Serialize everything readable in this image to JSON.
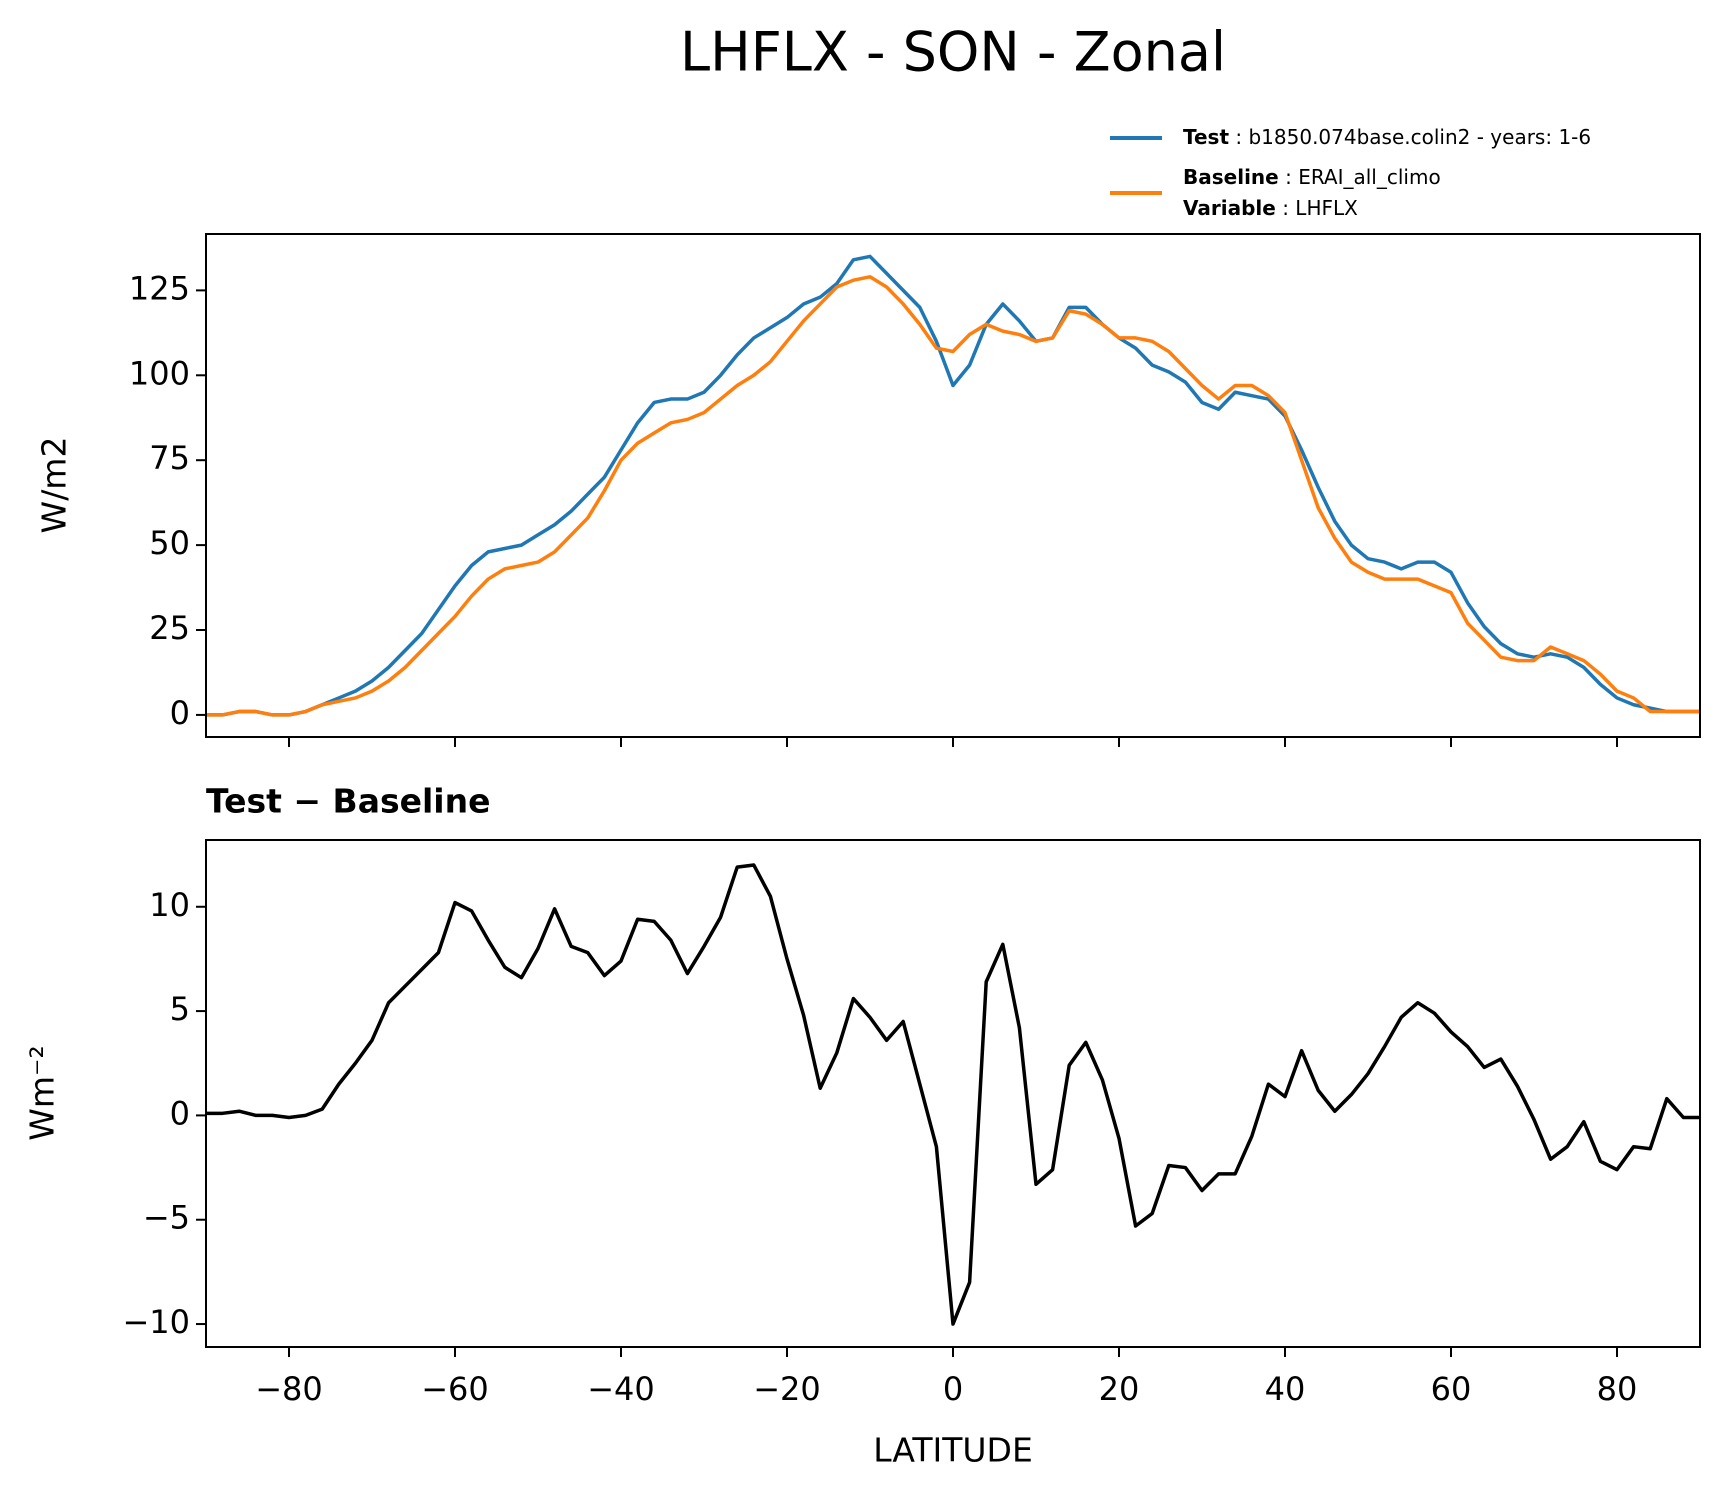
{
  "title": "LHFLX - SON - Zonal",
  "legend_separator": " : ",
  "legend_extra": {
    "name": "Variable",
    "description": "LHFLX"
  },
  "chart_data": [
    {
      "type": "line",
      "ylabel": "W/m2",
      "x": [
        -90,
        -88,
        -86,
        -84,
        -82,
        -80,
        -78,
        -76,
        -74,
        -72,
        -70,
        -68,
        -66,
        -64,
        -62,
        -60,
        -58,
        -56,
        -54,
        -52,
        -50,
        -48,
        -46,
        -44,
        -42,
        -40,
        -38,
        -36,
        -34,
        -32,
        -30,
        -28,
        -26,
        -24,
        -22,
        -20,
        -18,
        -16,
        -14,
        -12,
        -10,
        -8,
        -6,
        -4,
        -2,
        0,
        2,
        4,
        6,
        8,
        10,
        12,
        14,
        16,
        18,
        20,
        22,
        24,
        26,
        28,
        30,
        32,
        34,
        36,
        38,
        40,
        42,
        44,
        46,
        48,
        50,
        52,
        54,
        56,
        58,
        60,
        62,
        64,
        66,
        68,
        70,
        72,
        74,
        76,
        78,
        80,
        82,
        84,
        86,
        88,
        90
      ],
      "series": [
        {
          "name": "Test",
          "description": "b1850.074base.colin2 - years: 1-6",
          "color": "#1f77b4",
          "values": [
            0,
            0,
            1,
            1,
            0,
            0,
            1,
            3,
            5,
            7,
            10,
            14,
            19,
            24,
            31,
            38,
            44,
            48,
            49,
            50,
            53,
            56,
            60,
            65,
            70,
            78,
            86,
            92,
            93,
            93,
            95,
            100,
            106,
            111,
            114,
            117,
            121,
            123,
            127,
            134,
            135,
            130,
            125,
            120,
            110,
            97,
            103,
            115,
            121,
            116,
            110,
            111,
            120,
            120,
            115,
            111,
            108,
            103,
            101,
            98,
            92,
            90,
            95,
            94,
            93,
            88,
            78,
            67,
            57,
            50,
            46,
            45,
            43,
            45,
            45,
            42,
            33,
            26,
            21,
            18,
            17,
            18,
            17,
            14,
            9,
            5,
            3,
            2,
            1,
            1,
            1
          ]
        },
        {
          "name": "Baseline",
          "description": "ERAI_all_climo",
          "color": "#ff7f0e",
          "values": [
            0,
            0,
            1,
            1,
            0,
            0,
            1,
            3,
            4,
            5,
            7,
            10,
            14,
            19,
            24,
            29,
            35,
            40,
            43,
            44,
            45,
            48,
            53,
            58,
            66,
            75,
            80,
            83,
            86,
            87,
            89,
            93,
            97,
            100,
            104,
            110,
            116,
            121,
            126,
            128,
            129,
            126,
            121,
            115,
            108,
            107,
            112,
            115,
            113,
            112,
            110,
            111,
            119,
            118,
            115,
            111,
            111,
            110,
            107,
            102,
            97,
            93,
            97,
            97,
            94,
            89,
            75,
            61,
            52,
            45,
            42,
            40,
            40,
            40,
            38,
            36,
            27,
            22,
            17,
            16,
            16,
            20,
            18,
            16,
            12,
            7,
            5,
            1,
            1,
            1,
            1
          ]
        }
      ],
      "xlim": [
        -90,
        90
      ],
      "xticks": [
        -80,
        -60,
        -40,
        -20,
        0,
        20,
        40,
        60,
        80
      ],
      "ylim": [
        -6.5,
        141.6
      ],
      "yticks": [
        0,
        25,
        50,
        75,
        100,
        125
      ]
    },
    {
      "type": "line",
      "subtitle": "Test − Baseline",
      "ylabel": "Wm⁻²",
      "xlabel": "LATITUDE",
      "color": "#000000",
      "x": [
        -90,
        -88,
        -86,
        -84,
        -82,
        -80,
        -78,
        -76,
        -74,
        -72,
        -70,
        -68,
        -66,
        -64,
        -62,
        -60,
        -58,
        -56,
        -54,
        -52,
        -50,
        -48,
        -46,
        -44,
        -42,
        -40,
        -38,
        -36,
        -34,
        -32,
        -30,
        -28,
        -26,
        -24,
        -22,
        -20,
        -18,
        -16,
        -14,
        -12,
        -10,
        -8,
        -6,
        -4,
        -2,
        0,
        2,
        4,
        6,
        8,
        10,
        12,
        14,
        16,
        18,
        20,
        22,
        24,
        26,
        28,
        30,
        32,
        34,
        36,
        38,
        40,
        42,
        44,
        46,
        48,
        50,
        52,
        54,
        56,
        58,
        60,
        62,
        64,
        66,
        68,
        70,
        72,
        74,
        76,
        78,
        80,
        82,
        84,
        86,
        88,
        90
      ],
      "values": [
        0.1,
        0.1,
        0.2,
        0,
        0,
        -0.1,
        0,
        0.3,
        1.5,
        2.5,
        3.6,
        5.4,
        6.2,
        7,
        7.8,
        10.2,
        9.8,
        8.4,
        7.1,
        6.6,
        8,
        9.9,
        8.1,
        7.8,
        6.7,
        7.4,
        9.4,
        9.3,
        8.4,
        6.8,
        8.1,
        9.5,
        11.9,
        12,
        10.5,
        7.5,
        4.8,
        1.3,
        3,
        5.6,
        4.7,
        3.6,
        4.5,
        1.5,
        -1.5,
        -10,
        -8,
        6.4,
        8.2,
        4.2,
        -3.3,
        -2.6,
        2.4,
        3.5,
        1.7,
        -1.1,
        -5.3,
        -4.7,
        -2.4,
        -2.5,
        -3.6,
        -2.8,
        -2.8,
        -1,
        1.5,
        0.9,
        3.1,
        1.2,
        0.2,
        1,
        2,
        3.3,
        4.7,
        5.4,
        4.9,
        4,
        3.3,
        2.3,
        2.7,
        1.4,
        -0.2,
        -2.1,
        -1.5,
        -0.3,
        -2.2,
        -2.6,
        -1.5,
        -1.6,
        0.8,
        -0.1,
        -0.1
      ],
      "xlim": [
        -90,
        90
      ],
      "xticks": [
        {
          "value": -80,
          "label": "−80"
        },
        {
          "value": -60,
          "label": "−60"
        },
        {
          "value": -40,
          "label": "−40"
        },
        {
          "value": -20,
          "label": "−20"
        },
        0,
        20,
        40,
        60,
        80
      ],
      "ylim": [
        -11.1,
        13.2
      ],
      "yticks": [
        {
          "value": -10,
          "label": "−10"
        },
        {
          "value": -5,
          "label": "−5"
        },
        0,
        5,
        10
      ]
    }
  ]
}
